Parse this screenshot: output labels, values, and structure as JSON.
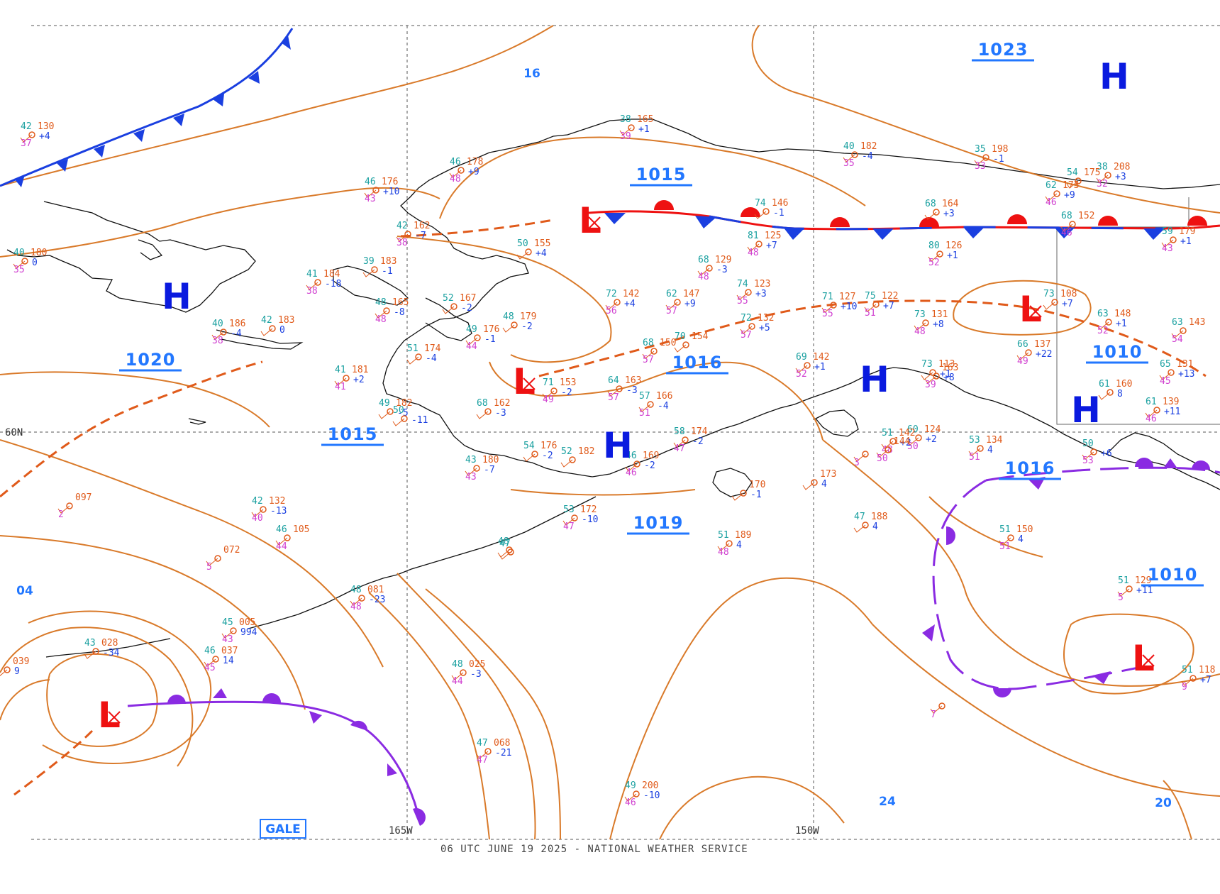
{
  "credit": "06 UTC JUNE 19 2025 - NATIONAL WEATHER SERVICE",
  "grid_labels": {
    "lat60": "60N",
    "lon165": "165W",
    "lon150": "150W"
  },
  "gale_label": "GALE",
  "colors": {
    "isobar": "#d97a2a",
    "high": "#0a1adf",
    "low": "#ee1111",
    "cold_front": "#1a3fe0",
    "warm_front": "#ee1111",
    "occluded": "#8a2be2",
    "label": "#2277ff",
    "coast": "#000000"
  },
  "highs": [
    {
      "id": "h1",
      "text": "H"
    },
    {
      "id": "h2",
      "text": "H"
    },
    {
      "id": "h3",
      "text": "H"
    },
    {
      "id": "h4",
      "text": "H"
    },
    {
      "id": "h5",
      "text": "H"
    }
  ],
  "lows": [
    {
      "id": "l1",
      "text": "L"
    },
    {
      "id": "l2",
      "text": "L"
    },
    {
      "id": "l3",
      "text": "L"
    },
    {
      "id": "l4",
      "text": "L"
    },
    {
      "id": "l5",
      "text": "L"
    }
  ],
  "isobar_labels": [
    {
      "id": "i1",
      "text": "1023"
    },
    {
      "id": "i2",
      "text": "1015"
    },
    {
      "id": "i3",
      "text": "1020"
    },
    {
      "id": "i4",
      "text": "1016"
    },
    {
      "id": "i5",
      "text": "1015"
    },
    {
      "id": "i6",
      "text": "1010"
    },
    {
      "id": "i7",
      "text": "1016"
    },
    {
      "id": "i8",
      "text": "1019"
    },
    {
      "id": "i9",
      "text": "1010"
    }
  ],
  "small_labels": [
    {
      "id": "s1",
      "text": "16"
    },
    {
      "id": "s2",
      "text": "04"
    },
    {
      "id": "s3",
      "text": "24"
    },
    {
      "id": "s4",
      "text": "20"
    }
  ],
  "stations": [
    {
      "t": "42",
      "p": "130",
      "d": "37",
      "c": "+4"
    },
    {
      "t": "40",
      "p": "180",
      "d": "35",
      "c": "0"
    },
    {
      "t": "46",
      "p": "176",
      "d": "43",
      "c": "+10"
    },
    {
      "t": "46",
      "p": "178",
      "d": "48",
      "c": "+9"
    },
    {
      "t": "38",
      "p": "165",
      "d": "39",
      "c": "+1"
    },
    {
      "t": "42",
      "p": "162",
      "d": "38",
      "c": "-7"
    },
    {
      "t": "50",
      "p": "155",
      "d": "",
      "c": "+4"
    },
    {
      "t": "39",
      "p": "183",
      "d": "",
      "c": "-1"
    },
    {
      "t": "41",
      "p": "184",
      "d": "38",
      "c": "-18"
    },
    {
      "t": "48",
      "p": "165",
      "d": "48",
      "c": "-8"
    },
    {
      "t": "52",
      "p": "167",
      "d": "",
      "c": "-2"
    },
    {
      "t": "48",
      "p": "179",
      "d": "",
      "c": "-2"
    },
    {
      "t": "49",
      "p": "176",
      "d": "44",
      "c": "-1"
    },
    {
      "t": "40",
      "p": "186",
      "d": "38",
      "c": "-4"
    },
    {
      "t": "42",
      "p": "183",
      "d": "",
      "c": "0"
    },
    {
      "t": "41",
      "p": "181",
      "d": "41",
      "c": "+2"
    },
    {
      "t": "51",
      "p": "174",
      "d": "",
      "c": "-4"
    },
    {
      "t": "49",
      "p": "182",
      "d": "",
      "c": "-5"
    },
    {
      "t": "50",
      "p": "",
      "d": "",
      "c": "-11"
    },
    {
      "t": "68",
      "p": "129",
      "d": "48",
      "c": "-3"
    },
    {
      "t": "72",
      "p": "142",
      "d": "56",
      "c": "+4"
    },
    {
      "t": "62",
      "p": "147",
      "d": "57",
      "c": "+9"
    },
    {
      "t": "74",
      "p": "146",
      "d": "",
      "c": "-1"
    },
    {
      "t": "81",
      "p": "125",
      "d": "48",
      "c": "+7"
    },
    {
      "t": "74",
      "p": "123",
      "d": "55",
      "c": "+3"
    },
    {
      "t": "72",
      "p": "132",
      "d": "57",
      "c": "+5"
    },
    {
      "t": "80",
      "p": "126",
      "d": "52",
      "c": "+1"
    },
    {
      "t": "68",
      "p": "164",
      "d": "",
      "c": "+3"
    },
    {
      "t": "40",
      "p": "182",
      "d": "35",
      "c": "-4"
    },
    {
      "t": "35",
      "p": "198",
      "d": "33",
      "c": "-1"
    },
    {
      "t": "38",
      "p": "208",
      "d": "32",
      "c": "+3"
    },
    {
      "t": "54",
      "p": "175",
      "d": "",
      "c": ""
    },
    {
      "t": "62",
      "p": "173",
      "d": "46",
      "c": "+9"
    },
    {
      "t": "68",
      "p": "152",
      "d": "46",
      "c": ""
    },
    {
      "t": "59",
      "p": "179",
      "d": "43",
      "c": "+1"
    },
    {
      "t": "73",
      "p": "108",
      "d": "",
      "c": "+7"
    },
    {
      "t": "63",
      "p": "148",
      "d": "52",
      "c": "+1"
    },
    {
      "t": "63",
      "p": "143",
      "d": "54",
      "c": ""
    },
    {
      "t": "66",
      "p": "137",
      "d": "49",
      "c": "+22"
    },
    {
      "t": "65",
      "p": "131",
      "d": "45",
      "c": "+13"
    },
    {
      "t": "61",
      "p": "160",
      "d": "",
      "c": "8"
    },
    {
      "t": "61",
      "p": "139",
      "d": "46",
      "c": "+11"
    },
    {
      "t": "75",
      "p": "122",
      "d": "51",
      "c": "+7"
    },
    {
      "t": "71",
      "p": "127",
      "d": "55",
      "c": "+10"
    },
    {
      "t": "73",
      "p": "131",
      "d": "48",
      "c": "+8"
    },
    {
      "t": "69",
      "p": "142",
      "d": "52",
      "c": "+1"
    },
    {
      "t": "68",
      "p": "150",
      "d": "57",
      "c": ""
    },
    {
      "t": "70",
      "p": "154",
      "d": "",
      "c": ""
    },
    {
      "t": "71",
      "p": "153",
      "d": "49",
      "c": "-2"
    },
    {
      "t": "64",
      "p": "163",
      "d": "57",
      "c": "-3"
    },
    {
      "t": "57",
      "p": "166",
      "d": "51",
      "c": "-4"
    },
    {
      "t": "68",
      "p": "162",
      "d": "",
      "c": "-3"
    },
    {
      "t": "73",
      "p": "113",
      "d": "",
      "c": "+1"
    },
    {
      "t": "",
      "p": "163",
      "d": "39",
      "c": "+8"
    },
    {
      "t": "54",
      "p": "176",
      "d": "",
      "c": "-2"
    },
    {
      "t": "43",
      "p": "180",
      "d": "43",
      "c": "-7"
    },
    {
      "t": "52",
      "p": "182",
      "d": "",
      "c": ""
    },
    {
      "t": "46",
      "p": "169",
      "d": "46",
      "c": "-2"
    },
    {
      "t": "58",
      "p": "174",
      "d": "47",
      "c": "-2"
    },
    {
      "t": "60",
      "p": "124",
      "d": "50",
      "c": "+2"
    },
    {
      "t": "51",
      "p": "142",
      "d": "48",
      "c": "+2"
    },
    {
      "t": "",
      "p": "144",
      "d": "50",
      "c": ""
    },
    {
      "t": "53",
      "p": "134",
      "d": "51",
      "c": "4"
    },
    {
      "t": "50",
      "p": "",
      "d": "53",
      "c": "+6"
    },
    {
      "t": "53",
      "p": "172",
      "d": "47",
      "c": "-10"
    },
    {
      "t": "",
      "p": "170",
      "d": "",
      "c": "-1"
    },
    {
      "t": "",
      "p": "173",
      "d": "",
      "c": "4"
    },
    {
      "t": "47",
      "p": "188",
      "d": "",
      "c": "4"
    },
    {
      "t": "51",
      "p": "189",
      "d": "48",
      "c": "4"
    },
    {
      "t": "51",
      "p": "150",
      "d": "51",
      "c": "4"
    },
    {
      "t": "51",
      "p": "129",
      "d": "5",
      "c": "+11"
    },
    {
      "t": "51",
      "p": "118",
      "d": "9",
      "c": "+7"
    },
    {
      "t": "42",
      "p": "132",
      "d": "40",
      "c": "-13"
    },
    {
      "t": "",
      "p": "097",
      "d": "2",
      "c": ""
    },
    {
      "t": "46",
      "p": "105",
      "d": "44",
      "c": ""
    },
    {
      "t": "",
      "p": "072",
      "d": "5",
      "c": ""
    },
    {
      "t": "48",
      "p": "081",
      "d": "48",
      "c": "-23"
    },
    {
      "t": "45",
      "p": "005",
      "d": "43",
      "c": "994"
    },
    {
      "t": "46",
      "p": "037",
      "d": "45",
      "c": "14"
    },
    {
      "t": "43",
      "p": "028",
      "d": "",
      "c": "-34"
    },
    {
      "t": "",
      "p": "039",
      "d": "",
      "c": "9"
    },
    {
      "t": "48",
      "p": "025",
      "d": "44",
      "c": "-3"
    },
    {
      "t": "47",
      "p": "068",
      "d": "47",
      "c": "-21"
    },
    {
      "t": "49",
      "p": "200",
      "d": "46",
      "c": "-10"
    },
    {
      "t": "47",
      "p": "",
      "d": "",
      "c": ""
    },
    {
      "t": "48",
      "p": "",
      "d": "",
      "c": ""
    },
    {
      "t": "",
      "p": "",
      "d": "7",
      "c": ""
    },
    {
      "t": "",
      "p": "",
      "d": "3",
      "c": ""
    }
  ]
}
